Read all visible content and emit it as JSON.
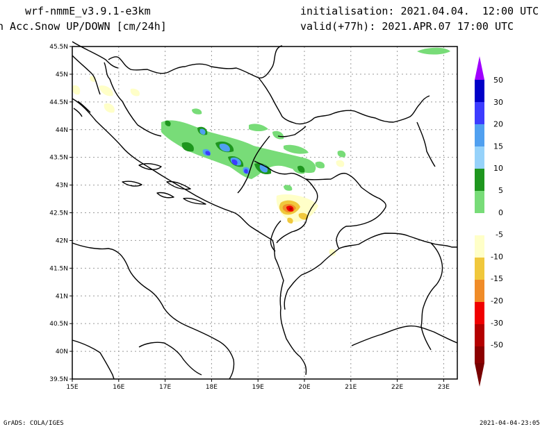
{
  "header": {
    "model": "wrf-nmmE_v3.9.1-e3km",
    "product": "n Acc.Snow UP/DOWN [cm/24h]",
    "init": "initialisation: 2021.04.04.  12:00 UTC",
    "valid": "valid(+77h): 2021.APR.07 17:00 UTC"
  },
  "footer": {
    "left": "GrADS: COLA/IGES",
    "right": "2021-04-04-23:05"
  },
  "map": {
    "lat_labels": [
      "45.5N",
      "45N",
      "44.5N",
      "44N",
      "43.5N",
      "43N",
      "42.5N",
      "42N",
      "41.5N",
      "41N",
      "40.5N",
      "40N",
      "39.5N"
    ],
    "lon_labels": [
      "15E",
      "16E",
      "17E",
      "18E",
      "19E",
      "20E",
      "21E",
      "22E",
      "23E"
    ],
    "grid": true
  },
  "colorbar": {
    "labels": [
      "50",
      "30",
      "20",
      "15",
      "10",
      "5",
      "0",
      "-5",
      "-10",
      "-15",
      "-20",
      "-30",
      "-50"
    ],
    "colors": [
      "#0000c8",
      "#3c3cff",
      "#50a0f0",
      "#96d2fa",
      "#1e961e",
      "#78dc78",
      "#ffffff",
      "#ffffc8",
      "#f0c83c",
      "#f08c28",
      "#f00000",
      "#b40000",
      "#8c0000"
    ],
    "top_color": "#a000ff",
    "bottom_color": "#780000"
  }
}
